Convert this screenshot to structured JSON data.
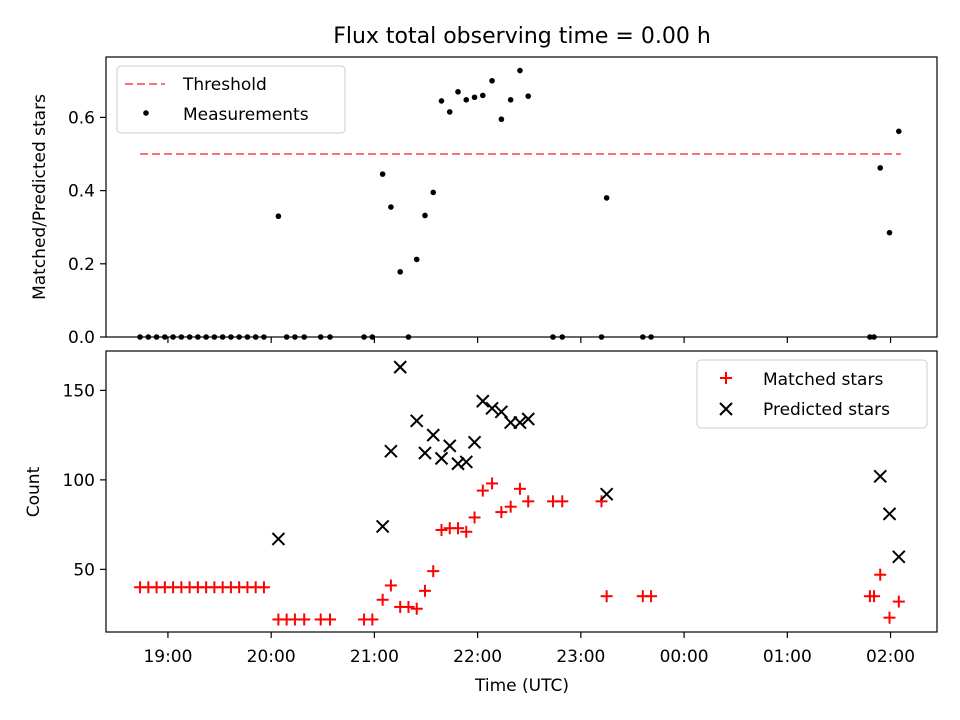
{
  "chart_data": [
    {
      "type": "scatter",
      "title": "Flux total observing time = 0.00 h",
      "xlabel": "",
      "ylabel": "Matched/Predicted stars",
      "x_ticks": [
        "19:00",
        "20:00",
        "21:00",
        "22:00",
        "23:00",
        "00:00",
        "01:00",
        "02:00"
      ],
      "y_ticks": [
        "0.0",
        "0.2",
        "0.4",
        "0.6"
      ],
      "y_tick_values": [
        0,
        0.2,
        0.4,
        0.6
      ],
      "threshold": {
        "label": "Threshold",
        "value": 0.5,
        "x_start": 18.73,
        "x_end": 26.1,
        "color": "#ff7070"
      },
      "measurements": {
        "label": "Measurements",
        "color": "#000000",
        "points": [
          [
            18.73,
            0
          ],
          [
            18.81,
            0
          ],
          [
            18.89,
            0
          ],
          [
            18.97,
            0
          ],
          [
            19.05,
            0
          ],
          [
            19.13,
            0
          ],
          [
            19.21,
            0
          ],
          [
            19.29,
            0
          ],
          [
            19.37,
            0
          ],
          [
            19.45,
            0
          ],
          [
            19.53,
            0
          ],
          [
            19.61,
            0
          ],
          [
            19.69,
            0
          ],
          [
            19.77,
            0
          ],
          [
            19.85,
            0
          ],
          [
            19.93,
            0
          ],
          [
            20.07,
            0.33
          ],
          [
            20.15,
            0
          ],
          [
            20.23,
            0
          ],
          [
            20.32,
            0
          ],
          [
            20.48,
            0
          ],
          [
            20.57,
            0
          ],
          [
            20.9,
            0
          ],
          [
            20.98,
            0
          ],
          [
            21.08,
            0.445
          ],
          [
            21.16,
            0.355
          ],
          [
            21.25,
            0.178
          ],
          [
            21.33,
            0
          ],
          [
            21.41,
            0.212
          ],
          [
            21.49,
            0.332
          ],
          [
            21.57,
            0.395
          ],
          [
            21.65,
            0.645
          ],
          [
            21.73,
            0.615
          ],
          [
            21.81,
            0.67
          ],
          [
            21.89,
            0.648
          ],
          [
            21.97,
            0.655
          ],
          [
            22.05,
            0.66
          ],
          [
            22.14,
            0.7
          ],
          [
            22.23,
            0.595
          ],
          [
            22.32,
            0.648
          ],
          [
            22.41,
            0.728
          ],
          [
            22.49,
            0.658
          ],
          [
            22.73,
            0
          ],
          [
            22.82,
            0
          ],
          [
            23.2,
            0
          ],
          [
            23.25,
            0.38
          ],
          [
            23.6,
            0
          ],
          [
            23.68,
            0
          ],
          [
            25.8,
            0
          ],
          [
            25.84,
            0
          ],
          [
            25.9,
            0.462
          ],
          [
            25.99,
            0.285
          ],
          [
            26.08,
            0.562
          ]
        ]
      },
      "xlim": [
        18.4,
        26.45
      ],
      "ylim": [
        0,
        0.765
      ],
      "legend": "top-left"
    },
    {
      "type": "scatter",
      "xlabel": "Time (UTC)",
      "ylabel": "Count",
      "x_ticks": [
        "19:00",
        "20:00",
        "21:00",
        "22:00",
        "23:00",
        "00:00",
        "01:00",
        "02:00"
      ],
      "y_ticks": [
        "50",
        "100",
        "150"
      ],
      "y_tick_values": [
        50,
        100,
        150
      ],
      "series": [
        {
          "name": "Matched stars",
          "marker": "plus",
          "color": "#ff0000",
          "points": [
            [
              18.73,
              40
            ],
            [
              18.81,
              40
            ],
            [
              18.89,
              40
            ],
            [
              18.97,
              40
            ],
            [
              19.05,
              40
            ],
            [
              19.13,
              40
            ],
            [
              19.21,
              40
            ],
            [
              19.29,
              40
            ],
            [
              19.37,
              40
            ],
            [
              19.45,
              40
            ],
            [
              19.53,
              40
            ],
            [
              19.61,
              40
            ],
            [
              19.69,
              40
            ],
            [
              19.77,
              40
            ],
            [
              19.85,
              40
            ],
            [
              19.93,
              40
            ],
            [
              20.07,
              22
            ],
            [
              20.15,
              22
            ],
            [
              20.23,
              22
            ],
            [
              20.32,
              22
            ],
            [
              20.48,
              22
            ],
            [
              20.57,
              22
            ],
            [
              20.9,
              22
            ],
            [
              20.98,
              22
            ],
            [
              21.08,
              33
            ],
            [
              21.16,
              41
            ],
            [
              21.25,
              29
            ],
            [
              21.33,
              29
            ],
            [
              21.41,
              28
            ],
            [
              21.49,
              38
            ],
            [
              21.57,
              49
            ],
            [
              21.65,
              72
            ],
            [
              21.73,
              73
            ],
            [
              21.81,
              73
            ],
            [
              21.89,
              71
            ],
            [
              21.97,
              79
            ],
            [
              22.05,
              94
            ],
            [
              22.14,
              98
            ],
            [
              22.23,
              82
            ],
            [
              22.32,
              85
            ],
            [
              22.41,
              95
            ],
            [
              22.49,
              88
            ],
            [
              22.73,
              88
            ],
            [
              22.82,
              88
            ],
            [
              23.2,
              88
            ],
            [
              23.25,
              35
            ],
            [
              23.6,
              35
            ],
            [
              23.68,
              35
            ],
            [
              25.8,
              35
            ],
            [
              25.84,
              35
            ],
            [
              25.9,
              47
            ],
            [
              25.99,
              23
            ],
            [
              26.08,
              32
            ]
          ]
        },
        {
          "name": "Predicted stars",
          "marker": "x",
          "color": "#000000",
          "points": [
            [
              20.07,
              67
            ],
            [
              21.08,
              74
            ],
            [
              21.16,
              116
            ],
            [
              21.25,
              163
            ],
            [
              21.41,
              133
            ],
            [
              21.49,
              115
            ],
            [
              21.57,
              125
            ],
            [
              21.65,
              112
            ],
            [
              21.73,
              119
            ],
            [
              21.81,
              109
            ],
            [
              21.89,
              110
            ],
            [
              21.97,
              121
            ],
            [
              22.05,
              144
            ],
            [
              22.14,
              140
            ],
            [
              22.23,
              138
            ],
            [
              22.32,
              132
            ],
            [
              22.41,
              132
            ],
            [
              22.49,
              134
            ],
            [
              23.25,
              92
            ],
            [
              25.9,
              102
            ],
            [
              25.99,
              81
            ],
            [
              26.08,
              57
            ]
          ]
        }
      ],
      "xlim": [
        18.4,
        26.45
      ],
      "ylim": [
        15,
        172
      ],
      "legend": "top-right"
    }
  ]
}
